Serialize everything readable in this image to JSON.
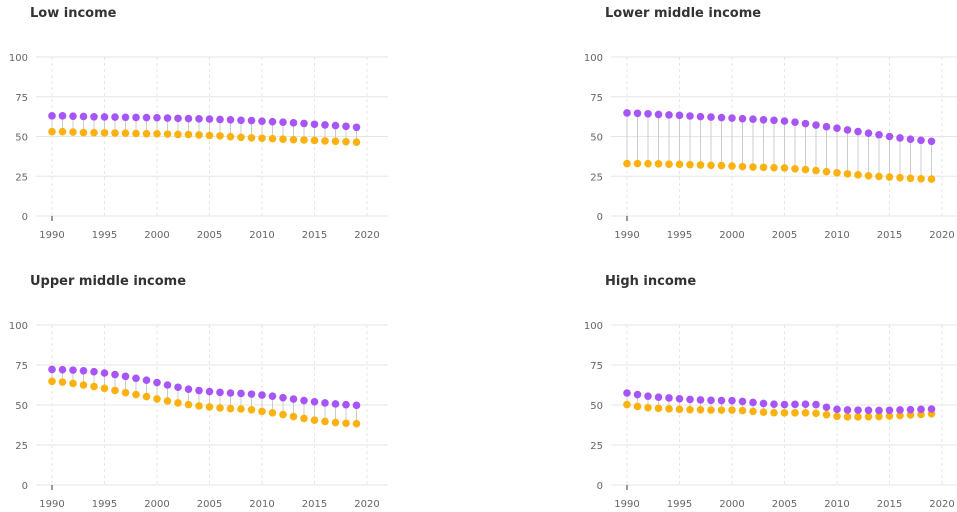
{
  "colors": {
    "top": "#a855f7",
    "bottom": "#fbb20f",
    "connector": "#cccccc",
    "grid": "#e6e6e6",
    "axis_text": "#666666"
  },
  "chart_data": [
    {
      "type": "dumbbell",
      "title": "Low income",
      "x": [
        1990,
        1991,
        1992,
        1993,
        1994,
        1995,
        1996,
        1997,
        1998,
        1999,
        2000,
        2001,
        2002,
        2003,
        2004,
        2005,
        2006,
        2007,
        2008,
        2009,
        2010,
        2011,
        2012,
        2013,
        2014,
        2015,
        2016,
        2017,
        2018,
        2019
      ],
      "series": [
        {
          "values": [
            63,
            63,
            62.8,
            62.6,
            62.4,
            62.3,
            62.2,
            62.1,
            62,
            61.9,
            61.8,
            61.6,
            61.4,
            61.3,
            61.1,
            61,
            60.7,
            60.5,
            60.2,
            60,
            59.6,
            59.3,
            59,
            58.6,
            58.2,
            57.7,
            57.3,
            56.9,
            56.4,
            55.8
          ]
        },
        {
          "values": [
            53,
            53,
            52.8,
            52.5,
            52.4,
            52.3,
            52.2,
            52.1,
            51.9,
            51.8,
            51.7,
            51.5,
            51.3,
            51.2,
            51,
            50.7,
            50.4,
            49.9,
            49.5,
            49.2,
            48.9,
            48.6,
            48.3,
            48,
            47.8,
            47.5,
            47.2,
            47,
            46.7,
            46.4
          ]
        }
      ],
      "x_ticks": [
        "1990",
        "1995",
        "2000",
        "2005",
        "2010",
        "2015",
        "2020"
      ],
      "y_ticks": [
        "0",
        "25",
        "50",
        "75",
        "100"
      ],
      "xlim": [
        1990,
        2020
      ],
      "ylim": [
        0,
        100
      ]
    },
    {
      "type": "dumbbell",
      "title": "Lower middle income",
      "x": [
        1990,
        1991,
        1992,
        1993,
        1994,
        1995,
        1996,
        1997,
        1998,
        1999,
        2000,
        2001,
        2002,
        2003,
        2004,
        2005,
        2006,
        2007,
        2008,
        2009,
        2010,
        2011,
        2012,
        2013,
        2014,
        2015,
        2016,
        2017,
        2018,
        2019
      ],
      "series": [
        {
          "values": [
            64.8,
            64.6,
            64.3,
            63.9,
            63.6,
            63.3,
            62.9,
            62.5,
            62.2,
            61.9,
            61.6,
            61.2,
            60.9,
            60.5,
            60.2,
            59.7,
            59,
            58.1,
            57.2,
            56.2,
            55.2,
            54.1,
            53.1,
            52.1,
            51.1,
            50,
            49.1,
            48.3,
            47.6,
            47
          ]
        },
        {
          "values": [
            33,
            33,
            32.9,
            32.8,
            32.6,
            32.5,
            32.3,
            32.1,
            31.9,
            31.7,
            31.4,
            31.1,
            30.8,
            30.6,
            30.4,
            30.2,
            29.7,
            29.2,
            28.6,
            27.9,
            27.2,
            26.5,
            25.9,
            25.3,
            24.9,
            24.5,
            24.1,
            23.7,
            23.4,
            23.2
          ]
        }
      ],
      "x_ticks": [
        "1990",
        "1995",
        "2000",
        "2005",
        "2010",
        "2015",
        "2020"
      ],
      "y_ticks": [
        "0",
        "25",
        "50",
        "75",
        "100"
      ],
      "xlim": [
        1990,
        2020
      ],
      "ylim": [
        0,
        100
      ]
    },
    {
      "type": "dumbbell",
      "title": "Upper middle income",
      "x": [
        1990,
        1991,
        1992,
        1993,
        1994,
        1995,
        1996,
        1997,
        1998,
        1999,
        2000,
        2001,
        2002,
        2003,
        2004,
        2005,
        2006,
        2007,
        2008,
        2009,
        2010,
        2011,
        2012,
        2013,
        2014,
        2015,
        2016,
        2017,
        2018,
        2019
      ],
      "series": [
        {
          "values": [
            72.2,
            72.1,
            71.8,
            71.4,
            70.8,
            70,
            69,
            67.9,
            66.7,
            65.5,
            64,
            62.5,
            61.1,
            59.9,
            59,
            58.4,
            57.9,
            57.5,
            57.2,
            56.8,
            56.2,
            55.5,
            54.6,
            53.7,
            52.8,
            52,
            51.3,
            50.7,
            50.2,
            49.8
          ]
        },
        {
          "values": [
            64.8,
            64.3,
            63.5,
            62.5,
            61.5,
            60.4,
            59.1,
            57.7,
            56.5,
            55.3,
            53.8,
            52.5,
            51.3,
            50.3,
            49.4,
            48.8,
            48.2,
            47.8,
            47.5,
            47,
            46,
            45.1,
            44,
            42.8,
            41.6,
            40.5,
            39.7,
            39,
            38.6,
            38.3
          ]
        }
      ],
      "x_ticks": [
        "1990",
        "1995",
        "2000",
        "2005",
        "2010",
        "2015",
        "2020"
      ],
      "y_ticks": [
        "0",
        "25",
        "50",
        "75",
        "100"
      ],
      "xlim": [
        1990,
        2020
      ],
      "ylim": [
        0,
        100
      ]
    },
    {
      "type": "dumbbell",
      "title": "High income",
      "x": [
        1990,
        1991,
        1992,
        1993,
        1994,
        1995,
        1996,
        1997,
        1998,
        1999,
        2000,
        2001,
        2002,
        2003,
        2004,
        2005,
        2006,
        2007,
        2008,
        2009,
        2010,
        2011,
        2012,
        2013,
        2014,
        2015,
        2016,
        2017,
        2018,
        2019
      ],
      "series": [
        {
          "values": [
            57.5,
            56.5,
            55.5,
            54.9,
            54.4,
            53.9,
            53.5,
            53.2,
            52.9,
            52.8,
            52.7,
            52.2,
            51.6,
            51,
            50.5,
            50.3,
            50.4,
            50.5,
            50.3,
            48.6,
            47.3,
            46.9,
            46.8,
            46.7,
            46.6,
            46.7,
            46.9,
            47.1,
            47.3,
            47.5
          ]
        },
        {
          "values": [
            50.3,
            49.1,
            48.3,
            47.9,
            47.6,
            47.3,
            47.1,
            47,
            46.8,
            46.8,
            46.8,
            46.5,
            46,
            45.5,
            45.2,
            45.1,
            45.1,
            45.1,
            44.8,
            43.9,
            42.9,
            42.6,
            42.6,
            42.7,
            42.8,
            43.1,
            43.4,
            43.8,
            44.1,
            44.5
          ]
        }
      ],
      "x_ticks": [
        "1990",
        "1995",
        "2000",
        "2005",
        "2010",
        "2015",
        "2020"
      ],
      "y_ticks": [
        "0",
        "25",
        "50",
        "75",
        "100"
      ],
      "xlim": [
        1990,
        2020
      ],
      "ylim": [
        0,
        100
      ]
    }
  ]
}
